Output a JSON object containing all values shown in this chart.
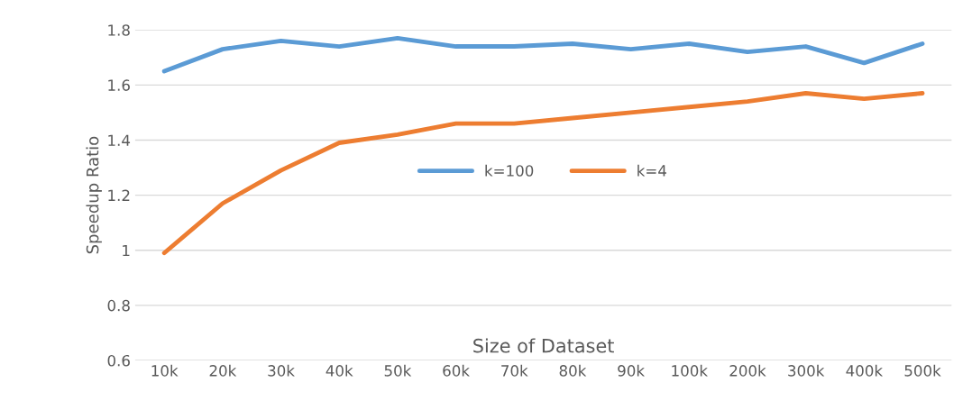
{
  "chart_data": {
    "type": "line",
    "xlabel": "Size of Dataset",
    "ylabel": "Speedup Ratio",
    "categories": [
      "10k",
      "20k",
      "30k",
      "40k",
      "50k",
      "60k",
      "70k",
      "80k",
      "90k",
      "100k",
      "200k",
      "300k",
      "400k",
      "500k"
    ],
    "series": [
      {
        "name": "k=100",
        "color": "#5b9bd5",
        "values": [
          1.65,
          1.73,
          1.76,
          1.74,
          1.77,
          1.74,
          1.74,
          1.75,
          1.73,
          1.75,
          1.72,
          1.74,
          1.68,
          1.75
        ]
      },
      {
        "name": "k=4",
        "color": "#ed7d31",
        "values": [
          0.99,
          1.17,
          1.29,
          1.39,
          1.42,
          1.46,
          1.46,
          1.48,
          1.5,
          1.52,
          1.54,
          1.57,
          1.55,
          1.57
        ]
      }
    ],
    "ylim": [
      0.6,
      1.8
    ],
    "yticks": [
      0.6,
      0.8,
      {
        "value": 1,
        "label": "1"
      },
      1.2,
      1.4,
      1.6,
      1.8
    ],
    "grid": "y",
    "legend": "center",
    "marker": "none",
    "line_style": "solid"
  }
}
